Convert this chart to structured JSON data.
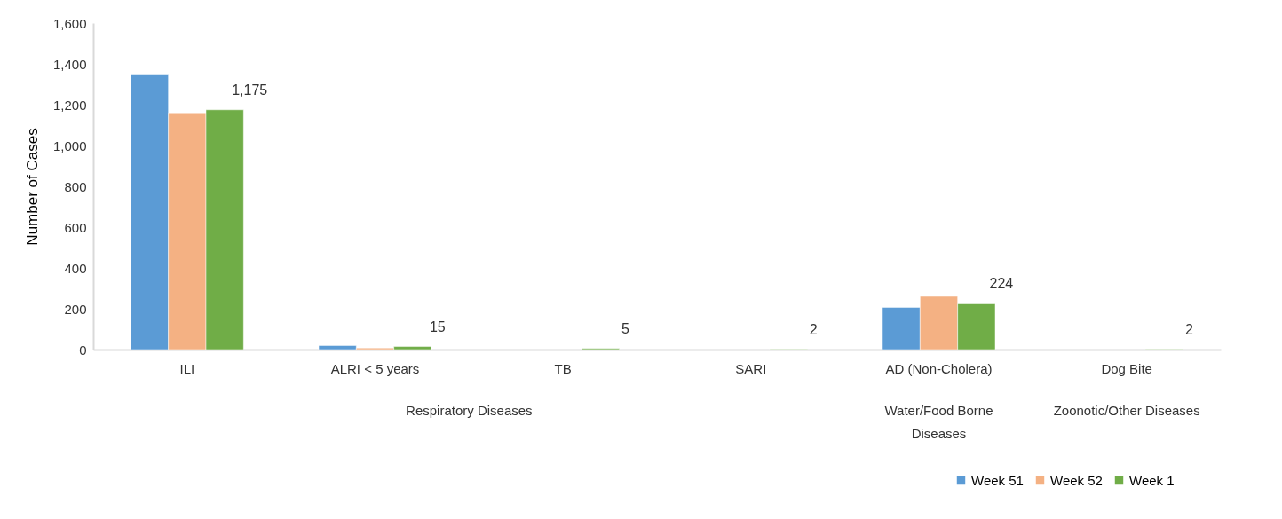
{
  "chart_data": {
    "type": "bar",
    "ylabel": "Number of Cases",
    "categories": [
      "ILI",
      "ALRI < 5 years",
      "TB",
      "SARI",
      "AD (Non-Cholera)",
      "Dog Bite"
    ],
    "series": [
      {
        "name": "Week 51",
        "color": "#5b9bd5",
        "values": [
          1350,
          20,
          null,
          null,
          207,
          null
        ]
      },
      {
        "name": "Week 52",
        "color": "#f4b183",
        "values": [
          1160,
          8,
          null,
          null,
          261,
          null
        ]
      },
      {
        "name": "Week 1",
        "color": "#70ad47",
        "values": [
          1175,
          15,
          5,
          2,
          224,
          2
        ],
        "value_labels": [
          "1,175",
          "15",
          "5",
          "2",
          "224",
          "2"
        ]
      }
    ],
    "ylim": [
      0,
      1600
    ],
    "yticks": [
      0,
      200,
      400,
      600,
      800,
      {
        "value": 1000,
        "label": "1,000"
      },
      {
        "value": 1200,
        "label": "1,200"
      },
      {
        "value": 1400,
        "label": "1,400"
      },
      {
        "value": 1600,
        "label": "1,600"
      }
    ],
    "grid": false,
    "legend": "bottom right",
    "annotations": [
      "Respiratory Diseases",
      "Water/Food Borne Diseases",
      "Zoonotic/Other Diseases"
    ]
  }
}
